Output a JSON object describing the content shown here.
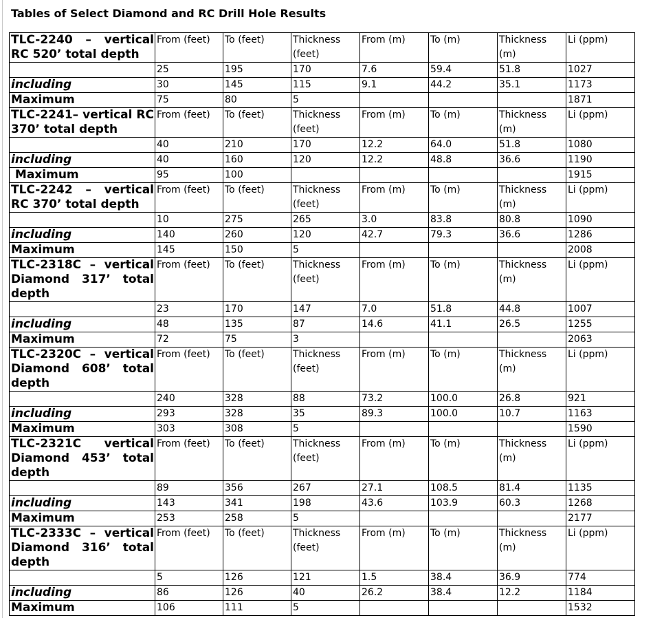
{
  "page_title": "Tables of Select Diamond and RC Drill Hole Results",
  "table": {
    "column_headers": [
      "From (feet)",
      "To (feet)",
      "Thickness (feet)",
      "From (m)",
      "To (m)",
      "Thickness (m)",
      "Li (ppm)"
    ],
    "sections": [
      {
        "hole": "TLC-2240 – vertical RC 520’ total depth",
        "rows": [
          {
            "label": "",
            "style": "normal",
            "values": [
              "25",
              "195",
              "170",
              "7.6",
              "59.4",
              "51.8",
              "1027"
            ]
          },
          {
            "label": "including",
            "style": "including",
            "values": [
              "30",
              "145",
              "115",
              "9.1",
              "44.2",
              "35.1",
              "1173"
            ]
          },
          {
            "label": "Maximum",
            "style": "maximum",
            "values": [
              "75",
              "80",
              "5",
              "",
              "",
              "",
              "1871"
            ]
          }
        ]
      },
      {
        "hole": "TLC-2241– vertical RC 370’ total depth",
        "rows": [
          {
            "label": "",
            "style": "normal",
            "values": [
              "40",
              "210",
              "170",
              "12.2",
              "64.0",
              "51.8",
              "1080"
            ]
          },
          {
            "label": "including",
            "style": "including",
            "values": [
              "40",
              "160",
              "120",
              "12.2",
              "48.8",
              "36.6",
              "1190"
            ]
          },
          {
            "label": " Maximum",
            "style": "maximum",
            "values": [
              "95",
              "100",
              "",
              "",
              "",
              "",
              "1915"
            ]
          }
        ]
      },
      {
        "hole": "TLC-2242 – vertical RC 370’ total depth",
        "rows": [
          {
            "label": "",
            "style": "normal",
            "values": [
              "10",
              "275",
              "265",
              "3.0",
              "83.8",
              "80.8",
              "1090"
            ]
          },
          {
            "label": "including",
            "style": "including",
            "values": [
              "140",
              "260",
              "120",
              "42.7",
              "79.3",
              "36.6",
              "1286"
            ]
          },
          {
            "label": "Maximum",
            "style": "maximum",
            "values": [
              "145",
              "150",
              "5",
              "",
              "",
              "",
              "2008"
            ]
          }
        ]
      },
      {
        "hole": "TLC-2318C – vertical Diamond 317’ total depth",
        "rows": [
          {
            "label": "",
            "style": "normal",
            "values": [
              "23",
              "170",
              "147",
              "7.0",
              "51.8",
              "44.8",
              "1007"
            ]
          },
          {
            "label": "including",
            "style": "including",
            "values": [
              "48",
              "135",
              "87",
              "14.6",
              "41.1",
              "26.5",
              "1255"
            ]
          },
          {
            "label": "Maximum",
            "style": "maximum",
            "values": [
              "72",
              "75",
              "3",
              "",
              "",
              "",
              "2063"
            ]
          }
        ]
      },
      {
        "hole": "TLC-2320C – vertical Diamond 608’ total depth",
        "rows": [
          {
            "label": "",
            "style": "normal",
            "values": [
              "240",
              "328",
              "88",
              "73.2",
              "100.0",
              "26.8",
              "921"
            ]
          },
          {
            "label": "including",
            "style": "including",
            "values": [
              "293",
              "328",
              "35",
              "89.3",
              "100.0",
              "10.7",
              "1163"
            ]
          },
          {
            "label": "Maximum",
            "style": "maximum",
            "values": [
              "303",
              "308",
              "5",
              "",
              "",
              "",
              "1590"
            ]
          }
        ]
      },
      {
        "hole": "TLC-2321C vertical Diamond 453’ total depth",
        "rows": [
          {
            "label": "",
            "style": "normal",
            "values": [
              "89",
              "356",
              "267",
              "27.1",
              "108.5",
              "81.4",
              "1135"
            ]
          },
          {
            "label": "including",
            "style": "including",
            "values": [
              "143",
              "341",
              "198",
              "43.6",
              "103.9",
              "60.3",
              "1268"
            ]
          },
          {
            "label": "Maximum",
            "style": "maximum",
            "values": [
              "253",
              "258",
              "5",
              "",
              "",
              "",
              "2177"
            ]
          }
        ]
      },
      {
        "hole": "TLC-2333C – vertical Diamond 316’ total depth",
        "rows": [
          {
            "label": "",
            "style": "normal",
            "values": [
              "5",
              "126",
              "121",
              "1.5",
              "38.4",
              "36.9",
              "774"
            ]
          },
          {
            "label": "including",
            "style": "including",
            "values": [
              "86",
              "126",
              "40",
              "26.2",
              "38.4",
              "12.2",
              "1184"
            ]
          },
          {
            "label": "Maximum",
            "style": "maximum",
            "values": [
              "106",
              "111",
              "5",
              "",
              "",
              "",
              "1532"
            ]
          }
        ]
      }
    ]
  }
}
